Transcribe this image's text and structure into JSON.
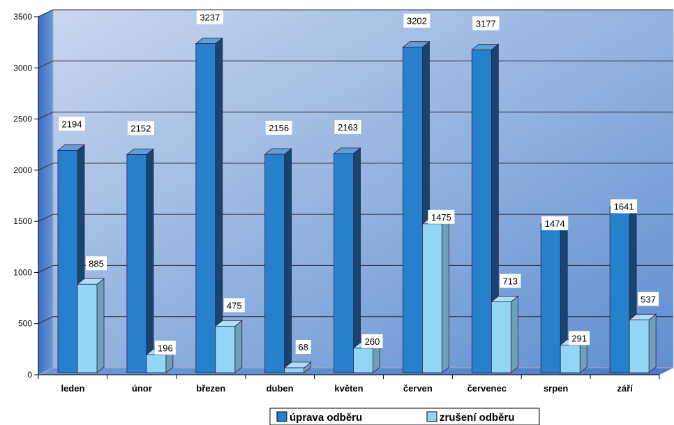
{
  "chart_data": {
    "type": "bar",
    "categories": [
      "leden",
      "únor",
      "březen",
      "duben",
      "květen",
      "červen",
      "červenec",
      "srpen",
      "září"
    ],
    "series": [
      {
        "name": "úprava odběru",
        "values": [
          2194,
          2152,
          3237,
          2156,
          2163,
          3202,
          3177,
          1474,
          1641
        ],
        "color": "#2680cc"
      },
      {
        "name": "zrušení odběru",
        "values": [
          885,
          196,
          475,
          68,
          260,
          1475,
          713,
          291,
          537
        ],
        "color": "#92d6f5"
      }
    ],
    "y_ticks": [
      "0",
      "500",
      "1000",
      "1500",
      "2000",
      "2500",
      "3000",
      "3500"
    ],
    "ylim": [
      0,
      3500
    ],
    "grid": true,
    "legend_position": "bottom-right",
    "style": "3d-columns"
  }
}
